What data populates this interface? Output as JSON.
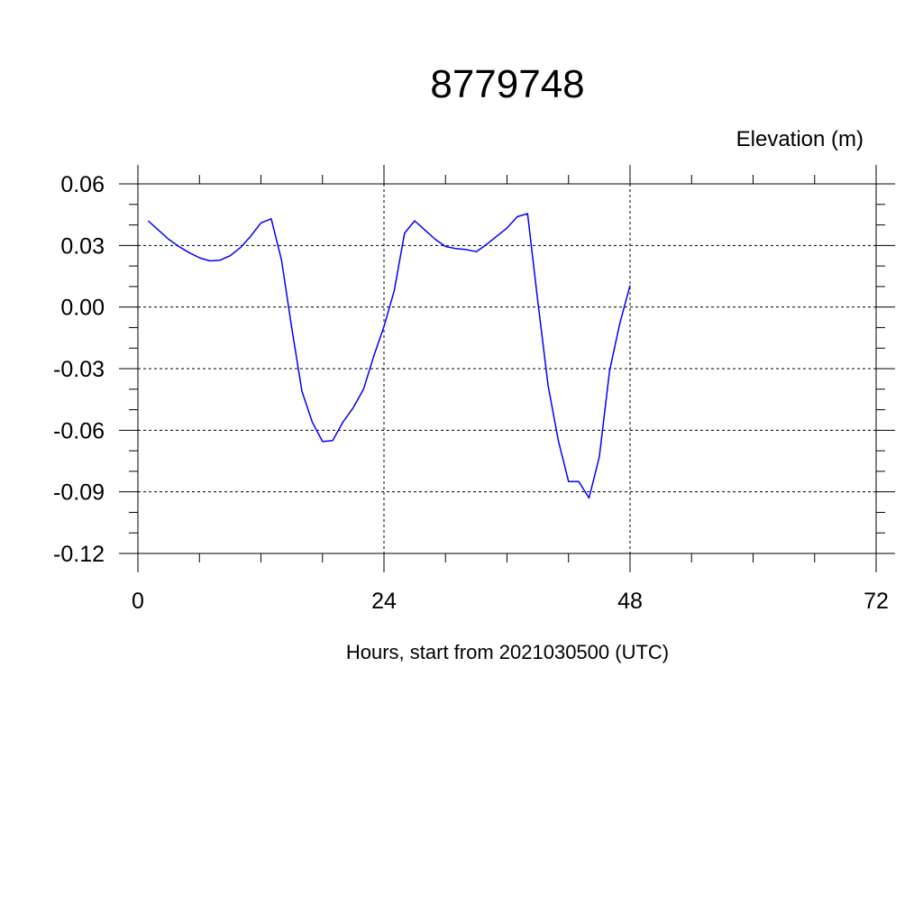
{
  "chart_data": {
    "type": "line",
    "title": "8779748",
    "ylabel": "Elevation (m)",
    "xlabel": "Hours, start from 2021030500 (UTC)",
    "xlim": [
      0,
      72
    ],
    "ylim": [
      -0.12,
      0.06
    ],
    "x_ticks": [
      0,
      24,
      48,
      72
    ],
    "x_tick_labels": [
      "0",
      "24",
      "48",
      "72"
    ],
    "y_ticks": [
      0.06,
      0.03,
      0.0,
      -0.03,
      -0.06,
      -0.09,
      -0.12
    ],
    "y_tick_labels": [
      "0.06",
      "0.03",
      "0.00",
      "-0.03",
      "-0.06",
      "-0.09",
      "-0.12"
    ],
    "grid": true,
    "series": [
      {
        "color": "#0000ff",
        "x": [
          1,
          2,
          3,
          4,
          5,
          6,
          7,
          8,
          9,
          10,
          11,
          12,
          13,
          14,
          15,
          16,
          17,
          18,
          19,
          20,
          21,
          22,
          23,
          24,
          25,
          26,
          27,
          28,
          29,
          30,
          31,
          32,
          33,
          34,
          35,
          36,
          37,
          38,
          39,
          40,
          41,
          42,
          43,
          44,
          45,
          46,
          47,
          48
        ],
        "values": [
          0.042,
          0.0375,
          0.033,
          0.0295,
          0.0265,
          0.024,
          0.0225,
          0.0228,
          0.025,
          0.029,
          0.0345,
          0.041,
          0.043,
          0.023,
          -0.01,
          -0.041,
          -0.056,
          -0.0655,
          -0.065,
          -0.056,
          -0.049,
          -0.04,
          -0.024,
          -0.0095,
          0.008,
          0.036,
          0.042,
          0.0375,
          0.033,
          0.0295,
          0.0285,
          0.028,
          0.027,
          0.0305,
          0.0345,
          0.0385,
          0.044,
          0.0455,
          0.003,
          -0.038,
          -0.065,
          -0.085,
          -0.085,
          -0.093,
          -0.073,
          -0.031,
          -0.008,
          0.0105
        ]
      }
    ]
  }
}
